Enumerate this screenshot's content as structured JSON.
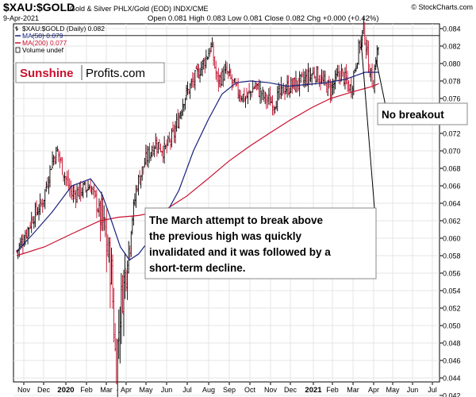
{
  "header": {
    "symbol": "$XAU:$GOLD",
    "description": "Gold & Silver PHLX/Gold (EOD) INDX/CME",
    "credit": "© StockCharts.com",
    "date": "9-Apr-2021",
    "ohlc": "Open 0.081  High 0.083  Low 0.081  Close 0.082  Chg +0.000 (+0.42%)"
  },
  "legend": [
    {
      "label": "$XAU:$GOLD (Daily) 0.082",
      "color": "#000000",
      "icon": "price-bar-icon"
    },
    {
      "label": "MA(50) 0.079",
      "color": "#1a237e",
      "icon": "line-swatch-icon"
    },
    {
      "label": "MA(200) 0.077",
      "color": "#c8102e",
      "icon": "line-swatch-icon"
    },
    {
      "label": "Volume undef",
      "color": "#000000",
      "icon": "box-swatch-icon"
    }
  ],
  "logo": {
    "part1": "Sunshine",
    "part2": "Profits.com"
  },
  "annotations": {
    "no_breakout": "No breakout",
    "march_attempt": [
      "The March attempt to break above",
      "the previous high was quickly",
      "invalidated and it was followed by a",
      "short-term decline."
    ]
  },
  "colors": {
    "up": "#000000",
    "down": "#c8102e",
    "ma50": "#1a237e",
    "ma200": "#c8102e"
  },
  "chart_data": {
    "type": "ohlc",
    "title": "$XAU:$GOLD",
    "ylim": [
      0.042,
      0.0845
    ],
    "y_ticks": [
      "0.084",
      "0.082",
      "0.080",
      "0.078",
      "0.076",
      "0.074",
      "0.072",
      "0.070",
      "0.068",
      "0.066",
      "0.064",
      "0.062",
      "0.060",
      "0.058",
      "0.056",
      "0.054",
      "0.052",
      "0.050",
      "0.048",
      "0.046",
      "0.044",
      "0.042"
    ],
    "x_ticks": [
      {
        "label": "Nov",
        "bold": false
      },
      {
        "label": "Dec",
        "bold": false
      },
      {
        "label": "2020",
        "bold": true
      },
      {
        "label": "Feb",
        "bold": false
      },
      {
        "label": "Mar",
        "bold": false
      },
      {
        "label": "Apr",
        "bold": false
      },
      {
        "label": "May",
        "bold": false
      },
      {
        "label": "Jun",
        "bold": false
      },
      {
        "label": "Jul",
        "bold": false
      },
      {
        "label": "Aug",
        "bold": false
      },
      {
        "label": "Sep",
        "bold": false
      },
      {
        "label": "Oct",
        "bold": false
      },
      {
        "label": "Nov",
        "bold": false
      },
      {
        "label": "Dec",
        "bold": false
      },
      {
        "label": "2021",
        "bold": true
      },
      {
        "label": "Feb",
        "bold": false
      },
      {
        "label": "Mar",
        "bold": false
      },
      {
        "label": "Apr",
        "bold": false
      },
      {
        "label": "May",
        "bold": false
      },
      {
        "label": "Jun",
        "bold": false
      },
      {
        "label": "Jul",
        "bold": false
      }
    ],
    "resistance_level": 0.0832,
    "close_path": [
      [
        "2019-10-21",
        0.0585
      ],
      [
        "2019-11-01",
        0.06
      ],
      [
        "2019-11-15",
        0.0625
      ],
      [
        "2019-11-29",
        0.064
      ],
      [
        "2019-12-13",
        0.069
      ],
      [
        "2019-12-20",
        0.07
      ],
      [
        "2019-12-31",
        0.067
      ],
      [
        "2020-01-10",
        0.065
      ],
      [
        "2020-01-24",
        0.0655
      ],
      [
        "2020-02-07",
        0.066
      ],
      [
        "2020-02-24",
        0.062
      ],
      [
        "2020-03-09",
        0.056
      ],
      [
        "2020-03-16",
        0.045
      ],
      [
        "2020-03-23",
        0.052
      ],
      [
        "2020-04-06",
        0.06
      ],
      [
        "2020-04-17",
        0.066
      ],
      [
        "2020-05-01",
        0.069
      ],
      [
        "2020-05-15",
        0.071
      ],
      [
        "2020-05-29",
        0.07
      ],
      [
        "2020-06-12",
        0.072
      ],
      [
        "2020-06-26",
        0.076
      ],
      [
        "2020-07-10",
        0.078
      ],
      [
        "2020-07-24",
        0.08
      ],
      [
        "2020-08-05",
        0.082
      ],
      [
        "2020-08-14",
        0.078
      ],
      [
        "2020-08-28",
        0.079
      ],
      [
        "2020-09-11",
        0.077
      ],
      [
        "2020-09-25",
        0.076
      ],
      [
        "2020-10-09",
        0.0775
      ],
      [
        "2020-10-23",
        0.076
      ],
      [
        "2020-11-06",
        0.0755
      ],
      [
        "2020-11-20",
        0.077
      ],
      [
        "2020-12-04",
        0.0775
      ],
      [
        "2020-12-18",
        0.078
      ],
      [
        "2021-01-04",
        0.079
      ],
      [
        "2021-01-15",
        0.078
      ],
      [
        "2021-01-29",
        0.077
      ],
      [
        "2021-02-12",
        0.079
      ],
      [
        "2021-02-26",
        0.077
      ],
      [
        "2021-03-05",
        0.08
      ],
      [
        "2021-03-12",
        0.0825
      ],
      [
        "2021-03-17",
        0.084
      ],
      [
        "2021-03-24",
        0.08
      ],
      [
        "2021-03-31",
        0.0775
      ],
      [
        "2021-04-05",
        0.081
      ],
      [
        "2021-04-09",
        0.082
      ]
    ],
    "series": [
      {
        "name": "MA(50)",
        "color": "#1a237e",
        "points": [
          [
            "2019-10-21",
            0.0585
          ],
          [
            "2019-11-15",
            0.0605
          ],
          [
            "2019-12-13",
            0.063
          ],
          [
            "2020-01-10",
            0.066
          ],
          [
            "2020-02-07",
            0.0668
          ],
          [
            "2020-02-24",
            0.065
          ],
          [
            "2020-03-09",
            0.062
          ],
          [
            "2020-03-23",
            0.059
          ],
          [
            "2020-04-06",
            0.0575
          ],
          [
            "2020-04-20",
            0.0582
          ],
          [
            "2020-05-08",
            0.06
          ],
          [
            "2020-05-29",
            0.0625
          ],
          [
            "2020-06-19",
            0.0655
          ],
          [
            "2020-07-10",
            0.07
          ],
          [
            "2020-07-31",
            0.0735
          ],
          [
            "2020-08-21",
            0.0765
          ],
          [
            "2020-09-11",
            0.0778
          ],
          [
            "2020-10-02",
            0.078
          ],
          [
            "2020-10-30",
            0.0778
          ],
          [
            "2020-11-27",
            0.0774
          ],
          [
            "2020-12-24",
            0.0776
          ],
          [
            "2021-01-22",
            0.0778
          ],
          [
            "2021-02-19",
            0.0782
          ],
          [
            "2021-03-19",
            0.079
          ],
          [
            "2021-04-09",
            0.079
          ]
        ]
      },
      {
        "name": "MA(200)",
        "color": "#c8102e",
        "points": [
          [
            "2019-10-21",
            0.058
          ],
          [
            "2019-12-02",
            0.059
          ],
          [
            "2020-01-10",
            0.0605
          ],
          [
            "2020-02-21",
            0.062
          ],
          [
            "2020-03-20",
            0.0624
          ],
          [
            "2020-04-20",
            0.0626
          ],
          [
            "2020-05-29",
            0.0632
          ],
          [
            "2020-06-30",
            0.0648
          ],
          [
            "2020-07-31",
            0.0668
          ],
          [
            "2020-08-31",
            0.0688
          ],
          [
            "2020-09-30",
            0.0705
          ],
          [
            "2020-10-30",
            0.072
          ],
          [
            "2020-11-30",
            0.0735
          ],
          [
            "2020-12-31",
            0.075
          ],
          [
            "2021-01-29",
            0.076
          ],
          [
            "2021-02-26",
            0.0767
          ],
          [
            "2021-03-31",
            0.0774
          ],
          [
            "2021-04-09",
            0.0777
          ]
        ]
      }
    ]
  }
}
